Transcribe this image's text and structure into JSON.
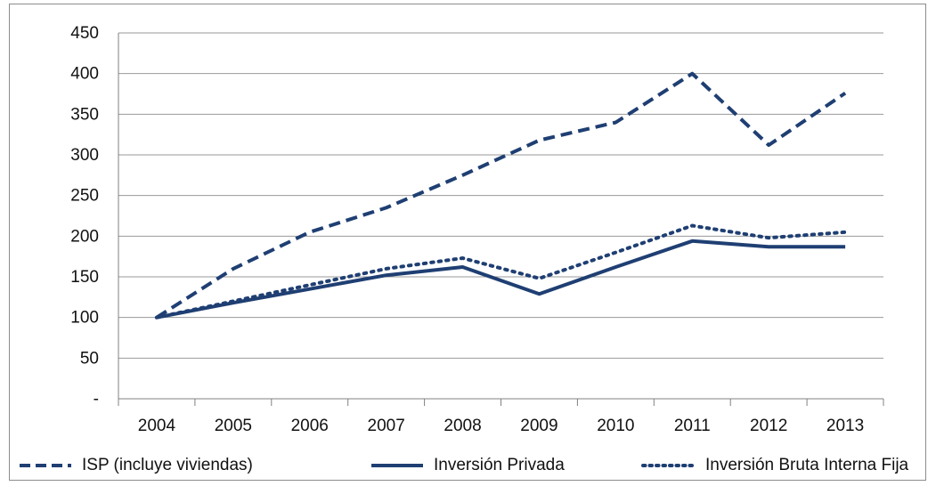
{
  "chart_data": {
    "type": "line",
    "categories": [
      "2004",
      "2005",
      "2006",
      "2007",
      "2008",
      "2009",
      "2010",
      "2011",
      "2012",
      "2013"
    ],
    "y_tick_labels": [
      "-",
      "50",
      "100",
      "150",
      "200",
      "250",
      "300",
      "350",
      "400",
      "450"
    ],
    "ylim": [
      0,
      450
    ],
    "grid": true,
    "legend_position": "bottom",
    "color": "#1f3f73",
    "series": [
      {
        "name": "ISP (incluye viviendas)",
        "style": "dashed",
        "values": [
          100,
          160,
          205,
          235,
          275,
          318,
          340,
          400,
          312,
          376
        ]
      },
      {
        "name": "Inversión Privada",
        "style": "solid",
        "values": [
          100,
          118,
          135,
          152,
          162,
          129,
          162,
          194,
          187,
          187
        ]
      },
      {
        "name": "Inversión Bruta Interna Fija",
        "style": "dotted",
        "values": [
          100,
          120,
          140,
          160,
          173,
          148,
          180,
          213,
          198,
          205
        ]
      }
    ]
  }
}
